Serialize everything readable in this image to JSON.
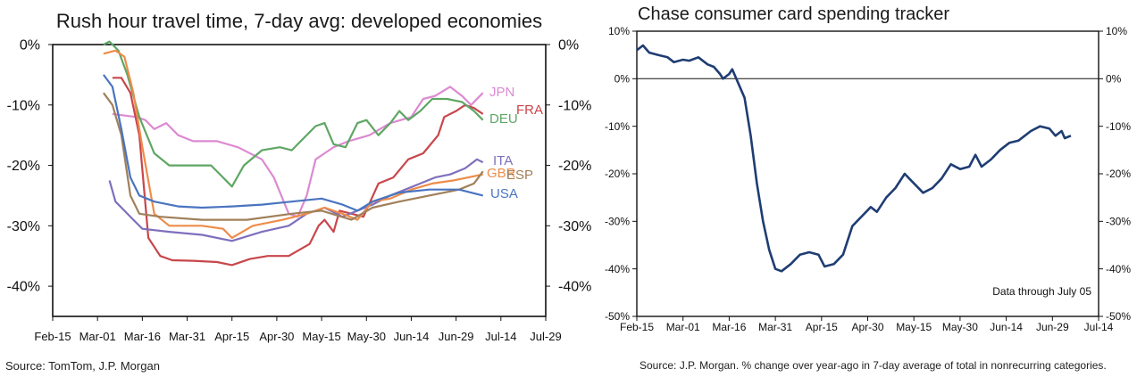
{
  "chart_data": [
    {
      "type": "line",
      "title": "Rush hour travel time, 7-day avg: developed economies",
      "x_ticks": [
        "Feb-15",
        "Mar-01",
        "Mar-16",
        "Mar-31",
        "Apr-15",
        "Apr-30",
        "May-15",
        "May-30",
        "Jun-14",
        "Jun-29",
        "Jul-14",
        "Jul-29"
      ],
      "y_ticks": [
        "0%",
        "-10%",
        "-20%",
        "-30%",
        "-40%"
      ],
      "ylim": [
        -45,
        0
      ],
      "xlim": [
        "2020-02-15",
        "2020-07-29"
      ],
      "grid": false,
      "source": "Source: TomTom, J.P. Morgan",
      "series": [
        {
          "name": "JPN",
          "color": "#dc8ad2",
          "points": [
            [
              "2020-03-06",
              -11.5
            ],
            [
              "2020-03-14",
              -12
            ],
            [
              "2020-03-17",
              -12.5
            ],
            [
              "2020-03-20",
              -14
            ],
            [
              "2020-03-24",
              -13
            ],
            [
              "2020-03-28",
              -15
            ],
            [
              "2020-04-02",
              -16
            ],
            [
              "2020-04-10",
              -16
            ],
            [
              "2020-04-17",
              -17
            ],
            [
              "2020-04-25",
              -19
            ],
            [
              "2020-04-29",
              -22
            ],
            [
              "2020-05-04",
              -28
            ],
            [
              "2020-05-07",
              -28.5
            ],
            [
              "2020-05-10",
              -25
            ],
            [
              "2020-05-13",
              -19
            ],
            [
              "2020-05-16",
              -18
            ],
            [
              "2020-05-19",
              -17
            ],
            [
              "2020-05-24",
              -16
            ],
            [
              "2020-05-31",
              -15
            ],
            [
              "2020-06-07",
              -13
            ],
            [
              "2020-06-14",
              -12
            ],
            [
              "2020-06-18",
              -9
            ],
            [
              "2020-06-22",
              -8.5
            ],
            [
              "2020-06-27",
              -7
            ],
            [
              "2020-07-01",
              -8.5
            ],
            [
              "2020-07-04",
              -10
            ],
            [
              "2020-07-08",
              -8
            ]
          ]
        },
        {
          "name": "FRA",
          "color": "#c8464b",
          "points": [
            [
              "2020-03-06",
              -5.5
            ],
            [
              "2020-03-09",
              -5.5
            ],
            [
              "2020-03-12",
              -8
            ],
            [
              "2020-03-15",
              -15
            ],
            [
              "2020-03-18",
              -32
            ],
            [
              "2020-03-22",
              -35
            ],
            [
              "2020-03-26",
              -35.7
            ],
            [
              "2020-04-02",
              -35.8
            ],
            [
              "2020-04-10",
              -36
            ],
            [
              "2020-04-15",
              -36.5
            ],
            [
              "2020-04-21",
              -35.5
            ],
            [
              "2020-04-27",
              -35
            ],
            [
              "2020-05-04",
              -35
            ],
            [
              "2020-05-11",
              -33
            ],
            [
              "2020-05-14",
              -30
            ],
            [
              "2020-05-16",
              -29
            ],
            [
              "2020-05-19",
              -31
            ],
            [
              "2020-05-21",
              -27.5
            ],
            [
              "2020-05-25",
              -28
            ],
            [
              "2020-05-29",
              -28.5
            ],
            [
              "2020-06-03",
              -23
            ],
            [
              "2020-06-08",
              -22
            ],
            [
              "2020-06-13",
              -19
            ],
            [
              "2020-06-18",
              -18
            ],
            [
              "2020-06-23",
              -15
            ],
            [
              "2020-06-25",
              -12
            ],
            [
              "2020-06-29",
              -11
            ],
            [
              "2020-07-02",
              -10
            ],
            [
              "2020-07-05",
              -10.5
            ],
            [
              "2020-07-08",
              -11.5
            ]
          ]
        },
        {
          "name": "DEU",
          "color": "#5fa664",
          "points": [
            [
              "2020-03-03",
              0
            ],
            [
              "2020-03-05",
              0.5
            ],
            [
              "2020-03-08",
              -1
            ],
            [
              "2020-03-11",
              -5
            ],
            [
              "2020-03-15",
              -12
            ],
            [
              "2020-03-20",
              -18
            ],
            [
              "2020-03-25",
              -20
            ],
            [
              "2020-04-01",
              -20
            ],
            [
              "2020-04-08",
              -20
            ],
            [
              "2020-04-12",
              -22
            ],
            [
              "2020-04-15",
              -23.5
            ],
            [
              "2020-04-19",
              -20
            ],
            [
              "2020-04-25",
              -17.5
            ],
            [
              "2020-05-01",
              -17
            ],
            [
              "2020-05-05",
              -17.5
            ],
            [
              "2020-05-08",
              -16
            ],
            [
              "2020-05-13",
              -13.5
            ],
            [
              "2020-05-16",
              -13
            ],
            [
              "2020-05-19",
              -16.5
            ],
            [
              "2020-05-23",
              -17
            ],
            [
              "2020-05-27",
              -13
            ],
            [
              "2020-05-30",
              -12.5
            ],
            [
              "2020-06-03",
              -15
            ],
            [
              "2020-06-07",
              -13
            ],
            [
              "2020-06-10",
              -11
            ],
            [
              "2020-06-13",
              -12.5
            ],
            [
              "2020-06-17",
              -11
            ],
            [
              "2020-06-21",
              -9
            ],
            [
              "2020-06-26",
              -9
            ],
            [
              "2020-07-01",
              -9.5
            ],
            [
              "2020-07-05",
              -11
            ],
            [
              "2020-07-08",
              -12.5
            ]
          ]
        },
        {
          "name": "ITA",
          "color": "#7f6fbd",
          "points": [
            [
              "2020-03-05",
              -22.5
            ],
            [
              "2020-03-07",
              -26
            ],
            [
              "2020-03-10",
              -27.5
            ],
            [
              "2020-03-13",
              -29
            ],
            [
              "2020-03-16",
              -30.5
            ],
            [
              "2020-03-25",
              -31
            ],
            [
              "2020-04-05",
              -31.5
            ],
            [
              "2020-04-15",
              -32.5
            ],
            [
              "2020-04-25",
              -31
            ],
            [
              "2020-05-04",
              -30
            ],
            [
              "2020-05-10",
              -28
            ],
            [
              "2020-05-16",
              -27
            ],
            [
              "2020-05-22",
              -28.5
            ],
            [
              "2020-05-27",
              -27.5
            ],
            [
              "2020-06-01",
              -26.5
            ],
            [
              "2020-06-07",
              -25
            ],
            [
              "2020-06-12",
              -24
            ],
            [
              "2020-06-17",
              -23
            ],
            [
              "2020-06-22",
              -22
            ],
            [
              "2020-06-27",
              -21.5
            ],
            [
              "2020-07-02",
              -20.5
            ],
            [
              "2020-07-06",
              -19
            ],
            [
              "2020-07-08",
              -19.5
            ]
          ]
        },
        {
          "name": "GBR",
          "color": "#ee8c4a",
          "points": [
            [
              "2020-03-03",
              -1.5
            ],
            [
              "2020-03-07",
              -1
            ],
            [
              "2020-03-10",
              -2
            ],
            [
              "2020-03-13",
              -8
            ],
            [
              "2020-03-16",
              -17
            ],
            [
              "2020-03-20",
              -28
            ],
            [
              "2020-03-25",
              -30
            ],
            [
              "2020-04-05",
              -30
            ],
            [
              "2020-04-12",
              -30.5
            ],
            [
              "2020-04-15",
              -32
            ],
            [
              "2020-04-22",
              -30
            ],
            [
              "2020-05-02",
              -29
            ],
            [
              "2020-05-10",
              -28
            ],
            [
              "2020-05-16",
              -27
            ],
            [
              "2020-05-22",
              -28
            ],
            [
              "2020-05-27",
              -29
            ],
            [
              "2020-06-01",
              -26
            ],
            [
              "2020-06-07",
              -25.5
            ],
            [
              "2020-06-14",
              -24
            ],
            [
              "2020-06-21",
              -23
            ],
            [
              "2020-06-28",
              -22.5
            ],
            [
              "2020-07-08",
              -21.5
            ]
          ]
        },
        {
          "name": "ESP",
          "color": "#a0805a",
          "points": [
            [
              "2020-03-03",
              -8
            ],
            [
              "2020-03-06",
              -10
            ],
            [
              "2020-03-09",
              -15
            ],
            [
              "2020-03-12",
              -25
            ],
            [
              "2020-03-15",
              -28
            ],
            [
              "2020-03-22",
              -28.5
            ],
            [
              "2020-04-05",
              -29
            ],
            [
              "2020-04-20",
              -29
            ],
            [
              "2020-05-05",
              -28
            ],
            [
              "2020-05-15",
              -27.5
            ],
            [
              "2020-05-25",
              -29
            ],
            [
              "2020-06-01",
              -27
            ],
            [
              "2020-06-10",
              -26
            ],
            [
              "2020-06-20",
              -25
            ],
            [
              "2020-06-30",
              -24
            ],
            [
              "2020-07-05",
              -23
            ],
            [
              "2020-07-08",
              -21
            ]
          ]
        },
        {
          "name": "USA",
          "color": "#4a74c0",
          "points": [
            [
              "2020-03-03",
              -5
            ],
            [
              "2020-03-06",
              -7
            ],
            [
              "2020-03-09",
              -14
            ],
            [
              "2020-03-12",
              -22
            ],
            [
              "2020-03-15",
              -25
            ],
            [
              "2020-03-20",
              -26
            ],
            [
              "2020-03-28",
              -26.8
            ],
            [
              "2020-04-05",
              -27
            ],
            [
              "2020-04-15",
              -26.8
            ],
            [
              "2020-04-25",
              -26.5
            ],
            [
              "2020-05-05",
              -26
            ],
            [
              "2020-05-15",
              -25.5
            ],
            [
              "2020-05-22",
              -26.5
            ],
            [
              "2020-05-27",
              -27.5
            ],
            [
              "2020-06-01",
              -26
            ],
            [
              "2020-06-10",
              -24.5
            ],
            [
              "2020-06-20",
              -24
            ],
            [
              "2020-06-30",
              -24
            ],
            [
              "2020-07-08",
              -25
            ]
          ]
        }
      ]
    },
    {
      "type": "line",
      "title": "Chase consumer card spending tracker",
      "x_ticks": [
        "Feb-15",
        "Mar-01",
        "Mar-16",
        "Mar-31",
        "Apr-15",
        "Apr-30",
        "May-15",
        "May-30",
        "Jun-14",
        "Jun-29",
        "Jul-14"
      ],
      "y_ticks": [
        "10%",
        "0%",
        "-10%",
        "-20%",
        "-30%",
        "-40%",
        "-50%"
      ],
      "ylim": [
        -50,
        10
      ],
      "xlim": [
        "2020-02-15",
        "2020-07-14"
      ],
      "grid": false,
      "reference_line": 0,
      "annotation": "Data through July 05",
      "source": "Source: J.P. Morgan. % change over year-ago in 7-day average of total in nonrecurring categories.",
      "series": [
        {
          "color": "#1f3d73",
          "points": [
            [
              "2020-02-15",
              6
            ],
            [
              "2020-02-17",
              7
            ],
            [
              "2020-02-19",
              5.5
            ],
            [
              "2020-02-22",
              5
            ],
            [
              "2020-02-25",
              4.5
            ],
            [
              "2020-02-27",
              3.5
            ],
            [
              "2020-03-01",
              4
            ],
            [
              "2020-03-03",
              3.8
            ],
            [
              "2020-03-06",
              4.5
            ],
            [
              "2020-03-09",
              3
            ],
            [
              "2020-03-11",
              2.5
            ],
            [
              "2020-03-13",
              1
            ],
            [
              "2020-03-14",
              0
            ],
            [
              "2020-03-16",
              1
            ],
            [
              "2020-03-17",
              2
            ],
            [
              "2020-03-19",
              -1
            ],
            [
              "2020-03-21",
              -4
            ],
            [
              "2020-03-23",
              -12
            ],
            [
              "2020-03-25",
              -22
            ],
            [
              "2020-03-27",
              -30
            ],
            [
              "2020-03-29",
              -36
            ],
            [
              "2020-03-31",
              -40
            ],
            [
              "2020-04-02",
              -40.5
            ],
            [
              "2020-04-05",
              -39
            ],
            [
              "2020-04-08",
              -37
            ],
            [
              "2020-04-11",
              -36.5
            ],
            [
              "2020-04-14",
              -37
            ],
            [
              "2020-04-16",
              -39.5
            ],
            [
              "2020-04-19",
              -39
            ],
            [
              "2020-04-22",
              -37
            ],
            [
              "2020-04-25",
              -31
            ],
            [
              "2020-04-28",
              -29
            ],
            [
              "2020-05-01",
              -27
            ],
            [
              "2020-05-03",
              -28
            ],
            [
              "2020-05-06",
              -25
            ],
            [
              "2020-05-09",
              -23
            ],
            [
              "2020-05-12",
              -20
            ],
            [
              "2020-05-15",
              -22
            ],
            [
              "2020-05-18",
              -24
            ],
            [
              "2020-05-21",
              -23
            ],
            [
              "2020-05-24",
              -21
            ],
            [
              "2020-05-27",
              -18
            ],
            [
              "2020-05-30",
              -19
            ],
            [
              "2020-06-02",
              -18.5
            ],
            [
              "2020-06-04",
              -16
            ],
            [
              "2020-06-06",
              -18.5
            ],
            [
              "2020-06-09",
              -17
            ],
            [
              "2020-06-12",
              -15
            ],
            [
              "2020-06-15",
              -13.5
            ],
            [
              "2020-06-18",
              -13
            ],
            [
              "2020-06-22",
              -11
            ],
            [
              "2020-06-25",
              -10
            ],
            [
              "2020-06-28",
              -10.5
            ],
            [
              "2020-06-30",
              -12
            ],
            [
              "2020-07-02",
              -11
            ],
            [
              "2020-07-03",
              -12.5
            ],
            [
              "2020-07-05",
              -12
            ]
          ]
        }
      ]
    }
  ]
}
